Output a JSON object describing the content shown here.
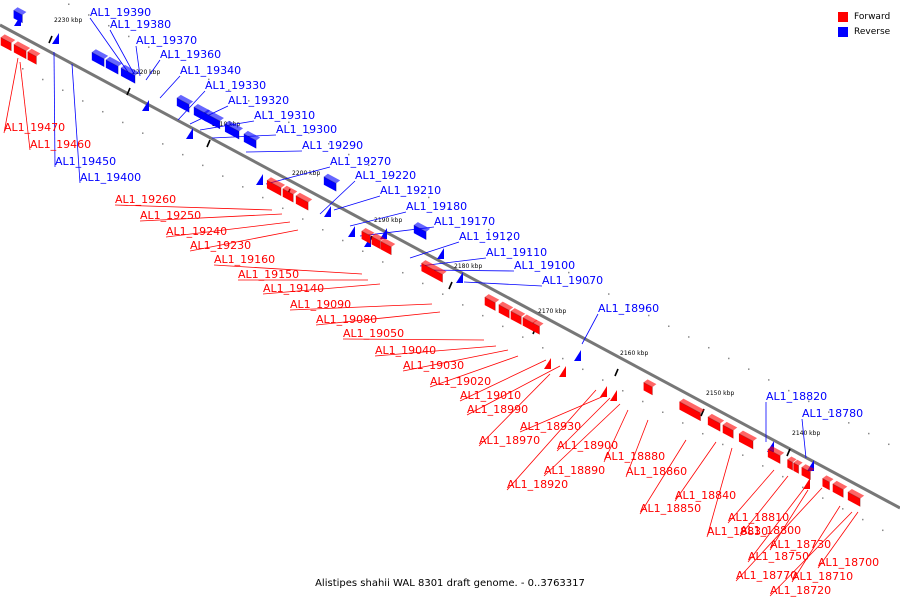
{
  "legend": {
    "forward_label": "Forward",
    "reverse_label": "Reverse",
    "forward_color": "#ff0000",
    "reverse_color": "#0000ff"
  },
  "caption": "Alistipes shahii WAL 8301 draft genome. - 0..3763317",
  "ticks": [
    "2230 kbp",
    "2220 kbp",
    "2210 kbp",
    "2200 kbp",
    "2190 kbp",
    "2180 kbp",
    "2170 kbp",
    "2160 kbp",
    "2150 kbp",
    "2140 kbp"
  ],
  "reverse_genes": [
    "AL1_19390",
    "AL1_19380",
    "AL1_19370",
    "AL1_19360",
    "AL1_19340",
    "AL1_19330",
    "AL1_19320",
    "AL1_19310",
    "AL1_19300",
    "AL1_19290",
    "AL1_19270",
    "AL1_19220",
    "AL1_19210",
    "AL1_19180",
    "AL1_19170",
    "AL1_19120",
    "AL1_19110",
    "AL1_19100",
    "AL1_19070",
    "AL1_18960",
    "AL1_18820",
    "AL1_18780",
    "AL1_19450",
    "AL1_19400"
  ],
  "forward_genes": [
    "AL1_19470",
    "AL1_19460",
    "AL1_19260",
    "AL1_19250",
    "AL1_19240",
    "AL1_19230",
    "AL1_19160",
    "AL1_19150",
    "AL1_19140",
    "AL1_19090",
    "AL1_19080",
    "AL1_19050",
    "AL1_19040",
    "AL1_19030",
    "AL1_19020",
    "AL1_19010",
    "AL1_18990",
    "AL1_18970",
    "AL1_18930",
    "AL1_18920",
    "AL1_18900",
    "AL1_18890",
    "AL1_18880",
    "AL1_18860",
    "AL1_18850",
    "AL1_18840",
    "AL1_18830",
    "AL1_18810",
    "AL1_18800",
    "AL1_18770",
    "AL1_18750",
    "AL1_18730",
    "AL1_18720",
    "AL1_18710",
    "AL1_18700"
  ]
}
